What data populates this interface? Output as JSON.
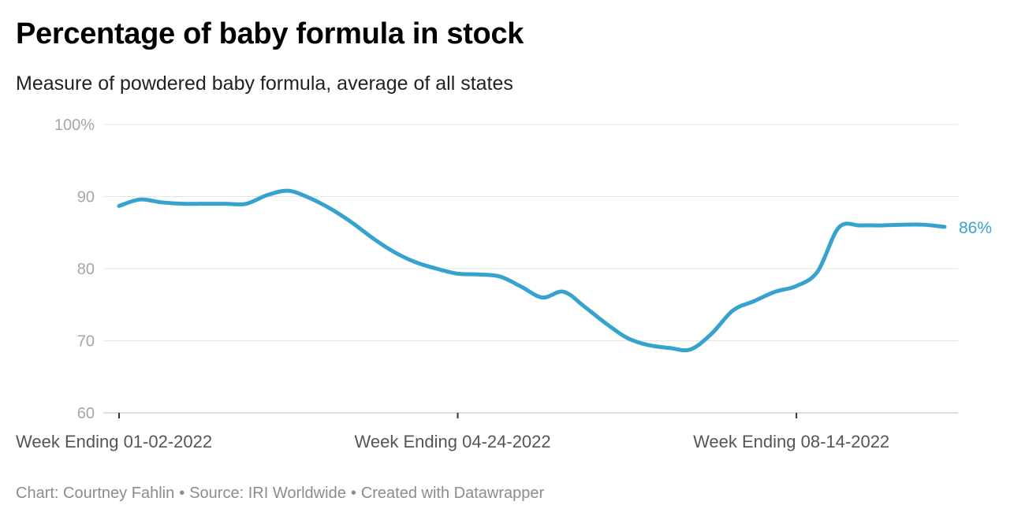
{
  "chart_data": {
    "type": "line",
    "title": "Percentage of baby formula in stock",
    "subtitle": "Measure of powdered baby formula, average of all states",
    "xlabel": "",
    "ylabel": "",
    "ylim": [
      60,
      100
    ],
    "y_ticks": [
      {
        "value": 60,
        "label": "60"
      },
      {
        "value": 70,
        "label": "70"
      },
      {
        "value": 80,
        "label": "80"
      },
      {
        "value": 90,
        "label": "90"
      },
      {
        "value": 100,
        "label": "100%"
      }
    ],
    "x_ticks": [
      {
        "index": 0,
        "label": "Week Ending 01-02-2022"
      },
      {
        "index": 16,
        "label": "Week Ending 04-24-2022"
      },
      {
        "index": 32,
        "label": "Week Ending 08-14-2022"
      }
    ],
    "series": [
      {
        "name": "Percentage of baby formula in stock",
        "color": "#36a3cf",
        "end_label": "86%",
        "values": [
          88.7,
          89.6,
          89.2,
          89.0,
          89.0,
          89.0,
          89.0,
          90.2,
          90.8,
          89.8,
          88.3,
          86.4,
          84.2,
          82.3,
          80.9,
          80.0,
          79.3,
          79.2,
          78.9,
          77.5,
          76.0,
          76.8,
          74.7,
          72.4,
          70.4,
          69.4,
          69.0,
          68.8,
          71.0,
          74.2,
          75.5,
          76.8,
          77.6,
          79.6,
          85.7,
          86.0,
          86.0,
          86.1,
          86.1,
          85.8
        ]
      }
    ]
  },
  "footer": {
    "chart_credit": "Chart: Courtney Fahlin",
    "source": "Source: IRI Worldwide",
    "created_with": "Created with Datawrapper",
    "separator": "•"
  }
}
